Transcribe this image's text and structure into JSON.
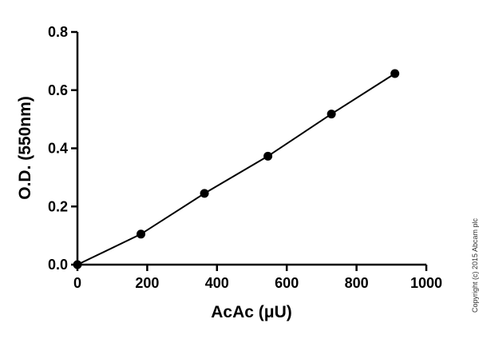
{
  "chart_data": {
    "type": "line",
    "xlabel": "AcAc (μU)",
    "ylabel": "O.D. (550nm)",
    "xlim": [
      0,
      1000
    ],
    "ylim": [
      0,
      0.8
    ],
    "x_ticks": [
      "0",
      "200",
      "400",
      "600",
      "800",
      "1000"
    ],
    "y_ticks": [
      "0.0",
      "0.2",
      "0.4",
      "0.6",
      "0.8"
    ],
    "grid": false,
    "series": [
      {
        "x": [
          0,
          182,
          364,
          546,
          728,
          910
        ],
        "y": [
          0.0,
          0.105,
          0.245,
          0.373,
          0.518,
          0.657
        ]
      }
    ]
  },
  "copyright": "Copyright (c) 2015 Abcam plc"
}
